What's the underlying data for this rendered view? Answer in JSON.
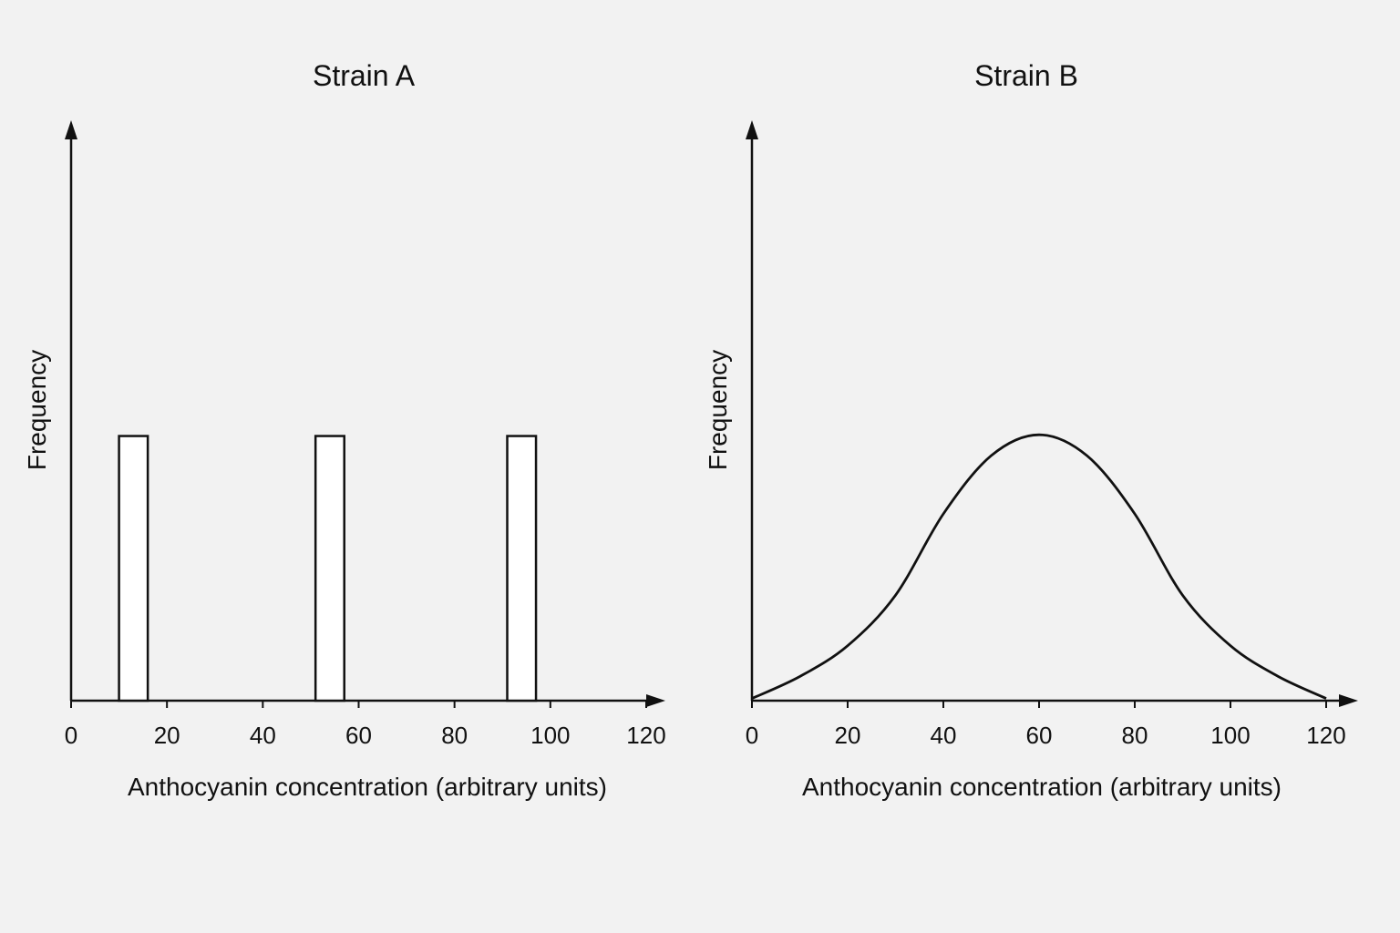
{
  "chart_data": [
    {
      "type": "bar",
      "title": "Strain A",
      "xlabel": "Anthocyanin concentration (arbitrary units)",
      "ylabel": "Frequency",
      "xlim": [
        0,
        120
      ],
      "xticks": [
        0,
        20,
        40,
        60,
        80,
        100,
        120
      ],
      "y_ticks_shown": false,
      "grid": false,
      "bars": [
        {
          "x_start": 10,
          "x_end": 16,
          "value": 1
        },
        {
          "x_start": 51,
          "x_end": 57,
          "value": 1
        },
        {
          "x_start": 91,
          "x_end": 97,
          "value": 1
        }
      ],
      "ylim": [
        0,
        2.2
      ]
    },
    {
      "type": "line",
      "title": "Strain B",
      "xlabel": "Anthocyanin concentration (arbitrary units)",
      "ylabel": "Frequency",
      "xlim": [
        0,
        120
      ],
      "xticks": [
        0,
        20,
        40,
        60,
        80,
        100,
        120
      ],
      "y_ticks_shown": false,
      "grid": false,
      "series": [
        {
          "x": [
            0,
            10,
            20,
            30,
            40,
            50,
            60,
            70,
            80,
            90,
            100,
            110,
            120
          ],
          "values": [
            0.02,
            0.22,
            0.5,
            0.96,
            1.7,
            2.23,
            2.42,
            2.23,
            1.7,
            0.96,
            0.5,
            0.22,
            0.02
          ]
        }
      ],
      "ylim": [
        0,
        5.3
      ]
    }
  ]
}
